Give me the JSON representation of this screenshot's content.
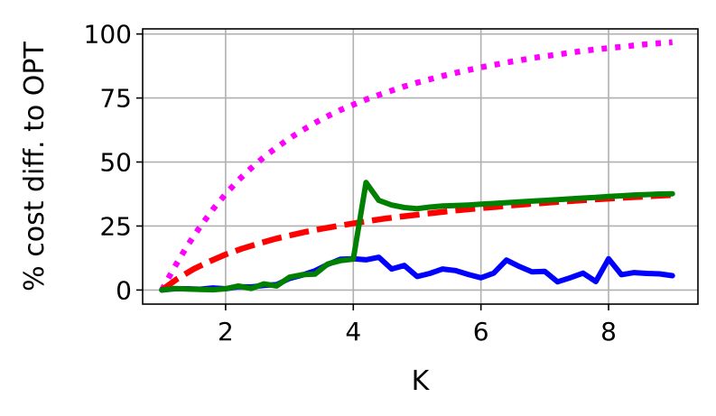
{
  "chart_data": {
    "type": "line",
    "title": "",
    "xlabel": "K",
    "ylabel": "% cost diff. to OPT",
    "xlim": [
      0.7,
      9.4
    ],
    "ylim": [
      -5.5,
      102
    ],
    "grid": true,
    "xticks": [
      2,
      4,
      6,
      8
    ],
    "yticks": [
      0,
      25,
      50,
      75,
      100
    ],
    "series": [
      {
        "color": "#ff00ff",
        "style": "dotted",
        "x": [
          1,
          1.2,
          1.4,
          1.6,
          1.8,
          2,
          2.2,
          2.4,
          2.6,
          2.8,
          3,
          3.2,
          3.4,
          3.6,
          3.8,
          4,
          4.2,
          4.4,
          4.6,
          4.8,
          5,
          5.2,
          5.4,
          5.6,
          5.8,
          6,
          6.2,
          6.4,
          6.6,
          6.8,
          7,
          7.2,
          7.4,
          7.6,
          7.8,
          8,
          8.2,
          8.4,
          8.6,
          8.8,
          9
        ],
        "y": [
          0,
          9,
          17.3,
          24.7,
          31.5,
          37.5,
          42.9,
          47.6,
          51.9,
          55.7,
          59.2,
          62.4,
          65.3,
          67.9,
          70.3,
          72.4,
          74.4,
          76.2,
          77.9,
          79.5,
          81,
          82.3,
          83.6,
          84.8,
          85.9,
          87,
          87.9,
          88.9,
          89.7,
          90.6,
          91.3,
          92,
          92.7,
          93.4,
          94,
          94.5,
          95,
          95.5,
          96,
          96.4,
          96.8
        ]
      },
      {
        "color": "#ff0000",
        "style": "dashed",
        "x": [
          1,
          1.25,
          1.5,
          1.75,
          2,
          2.25,
          2.5,
          2.75,
          3,
          3.25,
          3.5,
          3.75,
          4,
          4.25,
          4.5,
          4.75,
          5,
          5.25,
          5.5,
          5.75,
          6,
          6.25,
          6.5,
          6.75,
          7,
          7.25,
          7.5,
          7.75,
          8,
          8.25,
          8.5,
          8.75,
          9
        ],
        "y": [
          0,
          4.5,
          8.2,
          11.2,
          13.9,
          16.1,
          18,
          19.8,
          21.3,
          22.7,
          23.9,
          25,
          26,
          27,
          27.9,
          28.7,
          29.4,
          30.1,
          30.8,
          31.4,
          32,
          32.5,
          33.1,
          33.6,
          34,
          34.5,
          34.9,
          35.3,
          35.7,
          36.1,
          36.4,
          36.8,
          37.1
        ]
      },
      {
        "color": "#0000ff",
        "style": "solid",
        "x": [
          1,
          1.2,
          1.4,
          1.6,
          1.8,
          2,
          2.2,
          2.4,
          2.6,
          2.8,
          3,
          3.2,
          3.4,
          3.6,
          3.8,
          4,
          4.2,
          4.4,
          4.6,
          4.8,
          5,
          5.2,
          5.4,
          5.6,
          5.8,
          6,
          6.2,
          6.4,
          6.6,
          6.8,
          7,
          7.2,
          7.4,
          7.6,
          7.8,
          8,
          8.2,
          8.4,
          8.6,
          8.8,
          9
        ],
        "y": [
          0,
          0.5,
          0.5,
          0.3,
          0.8,
          0.5,
          1.3,
          1.2,
          1.8,
          2.1,
          4.5,
          5.8,
          7.5,
          10,
          12,
          12.2,
          11.8,
          12.8,
          8.2,
          9.6,
          5.3,
          6.5,
          8.2,
          7.6,
          6.1,
          4.8,
          6.6,
          11.7,
          9.2,
          7.1,
          7.3,
          3.2,
          4.8,
          6.6,
          3.3,
          12.2,
          6,
          6.8,
          6.5,
          6.3,
          5.6
        ]
      },
      {
        "color": "#008000",
        "style": "solid",
        "x": [
          1,
          1.2,
          1.4,
          1.6,
          1.8,
          2,
          2.2,
          2.4,
          2.6,
          2.8,
          3,
          3.2,
          3.4,
          3.6,
          3.8,
          4,
          4.2,
          4.4,
          4.6,
          4.8,
          5,
          5.2,
          5.4,
          5.6,
          5.8,
          6,
          6.2,
          6.4,
          6.6,
          6.8,
          7,
          7.2,
          7.4,
          7.6,
          7.8,
          8,
          8.2,
          8.4,
          8.6,
          8.8,
          9
        ],
        "y": [
          0,
          0.6,
          0.4,
          0.2,
          0.1,
          0.5,
          1.6,
          0.6,
          2.4,
          1.6,
          5,
          6,
          6.2,
          10.2,
          11.5,
          12.1,
          42,
          35,
          33.2,
          32.2,
          31.8,
          32.4,
          32.8,
          33,
          33.2,
          33.5,
          33.8,
          34.1,
          34.4,
          34.7,
          35,
          35.3,
          35.6,
          35.9,
          36.2,
          36.5,
          36.8,
          37.1,
          37.3,
          37.5,
          37.6
        ]
      }
    ]
  }
}
